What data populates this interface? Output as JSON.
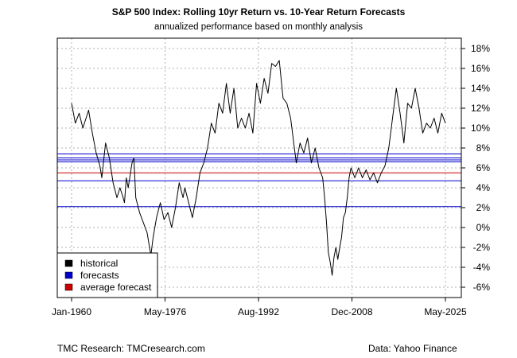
{
  "chart_data": {
    "type": "line",
    "title": "S&P 500 Index: Rolling 10yr Return vs. 10-Year Return Forecasts",
    "subtitle": "annualized performance based on monthly analysis",
    "xlabel": "",
    "ylabel": "",
    "x_range": [
      "Jan-1960",
      "May-2025"
    ],
    "x_tick_labels": [
      "Jan-1960",
      "May-1976",
      "Aug-1992",
      "Dec-2008",
      "May-2025"
    ],
    "y_ticks": [
      -6,
      -4,
      -2,
      0,
      2,
      4,
      6,
      8,
      10,
      12,
      14,
      16,
      18
    ],
    "y_tick_labels": [
      "-6%",
      "-4%",
      "-2%",
      "0%",
      "2%",
      "4%",
      "6%",
      "8%",
      "10%",
      "12%",
      "14%",
      "16%",
      "18%"
    ],
    "ylim": [
      -7,
      19
    ],
    "y_axis_side": "right",
    "grid": true,
    "legend_position": "bottom-left",
    "legend": [
      {
        "label": "historical",
        "color": "#000000"
      },
      {
        "label": "forecasts",
        "color": "#0000cc"
      },
      {
        "label": "average forecast",
        "color": "#cc0000"
      }
    ],
    "series": [
      {
        "name": "historical",
        "color": "#000000",
        "points": [
          [
            1960.0,
            12.5
          ],
          [
            1961.0,
            10.5
          ],
          [
            1962.0,
            11.5
          ],
          [
            1963.0,
            10.0
          ],
          [
            1964.5,
            11.8
          ],
          [
            1965.5,
            9.5
          ],
          [
            1966.5,
            7.5
          ],
          [
            1967.5,
            6.2
          ],
          [
            1968.0,
            5.0
          ],
          [
            1969.0,
            8.5
          ],
          [
            1970.0,
            7.0
          ],
          [
            1971.0,
            4.5
          ],
          [
            1972.0,
            3.0
          ],
          [
            1972.8,
            4.0
          ],
          [
            1973.5,
            3.2
          ],
          [
            1974.0,
            2.5
          ],
          [
            1974.5,
            5.0
          ],
          [
            1975.0,
            4.0
          ],
          [
            1976.0,
            6.5
          ],
          [
            1976.5,
            7.0
          ],
          [
            1977.0,
            3.0
          ],
          [
            1978.0,
            1.5
          ],
          [
            1979.0,
            0.5
          ],
          [
            1980.0,
            -0.5
          ],
          [
            1981.0,
            -2.8
          ],
          [
            1981.6,
            -1.0
          ],
          [
            1982.5,
            1.0
          ],
          [
            1983.5,
            2.5
          ],
          [
            1984.5,
            0.8
          ],
          [
            1985.5,
            1.5
          ],
          [
            1986.5,
            0.0
          ],
          [
            1987.5,
            2.0
          ],
          [
            1988.5,
            4.5
          ],
          [
            1989.5,
            3.0
          ],
          [
            1990.0,
            4.0
          ],
          [
            1991.0,
            2.5
          ],
          [
            1992.0,
            1.0
          ],
          [
            1993.0,
            3.0
          ],
          [
            1994.0,
            5.5
          ],
          [
            1995.0,
            6.5
          ],
          [
            1996.0,
            8.0
          ],
          [
            1997.0,
            10.5
          ],
          [
            1998.0,
            9.5
          ],
          [
            1999.0,
            12.5
          ],
          [
            2000.0,
            11.5
          ],
          [
            2001.0,
            14.5
          ],
          [
            2002.0,
            11.5
          ],
          [
            2003.0,
            14.0
          ],
          [
            2004.0,
            10.0
          ],
          [
            2005.0,
            11.0
          ],
          [
            2006.0,
            10.0
          ],
          [
            2007.0,
            11.5
          ],
          [
            2008.0,
            9.5
          ],
          [
            2009.0,
            14.5
          ],
          [
            2010.0,
            12.5
          ],
          [
            2011.0,
            15.0
          ],
          [
            2012.0,
            13.5
          ],
          [
            2013.0,
            16.5
          ],
          [
            2014.0,
            16.2
          ],
          [
            2015.0,
            16.8
          ],
          [
            2016.0,
            13.0
          ],
          [
            2017.0,
            12.5
          ],
          [
            2018.0,
            11.0
          ],
          [
            2019.0,
            8.0
          ],
          [
            2019.5,
            6.5
          ],
          [
            2020.5,
            8.5
          ],
          [
            2021.5,
            7.5
          ],
          [
            2022.5,
            9.0
          ],
          [
            2023.5,
            6.5
          ],
          [
            2024.5,
            8.0
          ],
          [
            2025.5,
            6.0
          ],
          [
            2026.5,
            5.0
          ],
          [
            2027.0,
            3.0
          ],
          [
            2027.5,
            0.5
          ],
          [
            2028.0,
            -2.5
          ],
          [
            2028.5,
            -3.5
          ],
          [
            2029.0,
            -4.8
          ],
          [
            2029.5,
            -3.0
          ],
          [
            2030.0,
            -2.0
          ],
          [
            2030.5,
            -3.2
          ],
          [
            2031.0,
            -2.0
          ],
          [
            2031.5,
            -1.0
          ],
          [
            2032.0,
            1.0
          ],
          [
            2032.5,
            1.5
          ],
          [
            2033.0,
            3.0
          ],
          [
            2033.5,
            5.0
          ],
          [
            2034.0,
            6.0
          ],
          [
            2035.0,
            5.0
          ],
          [
            2036.0,
            6.0
          ],
          [
            2037.0,
            5.0
          ],
          [
            2038.0,
            5.8
          ],
          [
            2039.0,
            4.8
          ],
          [
            2040.0,
            5.5
          ],
          [
            2041.0,
            4.5
          ],
          [
            2042.0,
            5.5
          ],
          [
            2043.0,
            6.2
          ],
          [
            2044.0,
            8.0
          ],
          [
            2045.0,
            11.0
          ],
          [
            2046.0,
            14.0
          ],
          [
            2047.0,
            11.5
          ],
          [
            2048.0,
            8.5
          ],
          [
            2049.0,
            12.5
          ],
          [
            2050.0,
            12.0
          ],
          [
            2051.0,
            14.0
          ],
          [
            2052.0,
            12.0
          ],
          [
            2053.0,
            9.5
          ],
          [
            2054.0,
            10.5
          ],
          [
            2055.0,
            10.0
          ],
          [
            2056.0,
            11.0
          ],
          [
            2057.0,
            9.5
          ],
          [
            2058.0,
            11.5
          ],
          [
            2059.0,
            10.5
          ]
        ]
      }
    ],
    "forecasts": [
      7.4,
      7.0,
      6.8,
      6.6,
      4.7,
      2.1
    ],
    "average_forecast": 5.5
  },
  "footer": {
    "left": "TMC Research: TMCresearch.com",
    "right": "Data: Yahoo Finance"
  }
}
